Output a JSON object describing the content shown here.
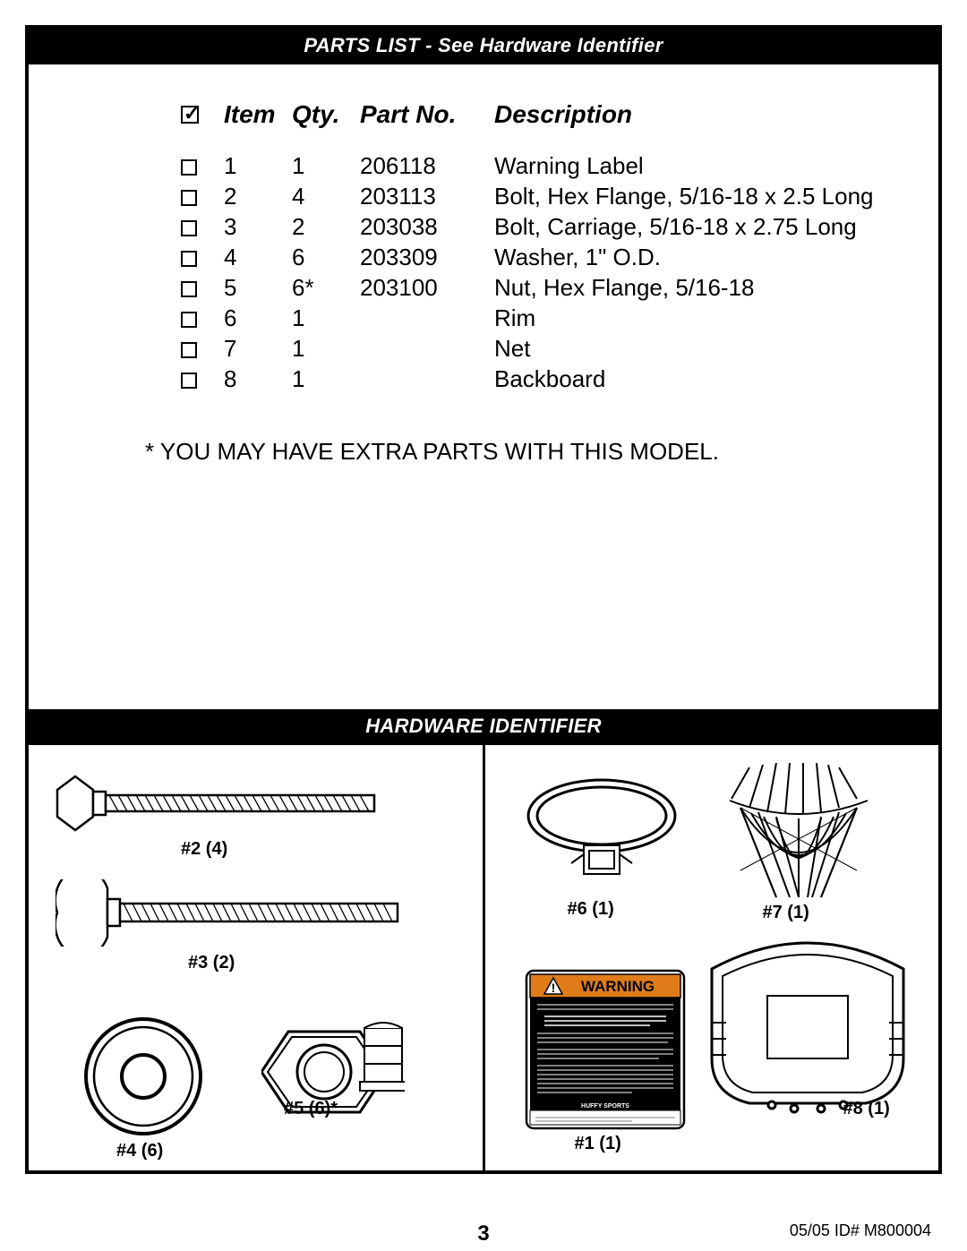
{
  "section1_title": "PARTS LIST - See Hardware Identifier",
  "section2_title": "HARDWARE IDENTIFIER",
  "headers": {
    "item": "Item",
    "qty": "Qty.",
    "part": "Part No.",
    "desc": "Description"
  },
  "parts": [
    {
      "item": "1",
      "qty": "1",
      "part": "206118",
      "desc": "Warning Label"
    },
    {
      "item": "2",
      "qty": "4",
      "part": "203113",
      "desc": "Bolt, Hex Flange, 5/16-18 x 2.5 Long"
    },
    {
      "item": "3",
      "qty": "2",
      "part": "203038",
      "desc": "Bolt, Carriage, 5/16-18 x 2.75 Long"
    },
    {
      "item": "4",
      "qty": "6",
      "part": "203309",
      "desc": "Washer, 1\" O.D."
    },
    {
      "item": "5",
      "qty": "6*",
      "part": "203100",
      "desc": "Nut, Hex Flange, 5/16-18"
    },
    {
      "item": "6",
      "qty": "1",
      "part": "",
      "desc": "Rim"
    },
    {
      "item": "7",
      "qty": "1",
      "part": "",
      "desc": "Net"
    },
    {
      "item": "8",
      "qty": "1",
      "part": "",
      "desc": "Backboard"
    }
  ],
  "note": "* YOU MAY HAVE EXTRA PARTS WITH THIS MODEL.",
  "hw_labels": {
    "l2": "#2 (4)",
    "l3": "#3 (2)",
    "l4": "#4 (6)",
    "l5": "#5 (6)*",
    "l6": "#6 (1)",
    "l7": "#7 (1)",
    "l8": "#8 (1)",
    "l1": "#1 (1)"
  },
  "warning_text": "WARNING",
  "warning_brand": "HUFFY SPORTS",
  "footer": {
    "page": "3",
    "right": "05/05    ID#    M800004"
  },
  "colors": {
    "warning_orange": "#e07b1a",
    "black": "#000000",
    "white": "#ffffff"
  }
}
